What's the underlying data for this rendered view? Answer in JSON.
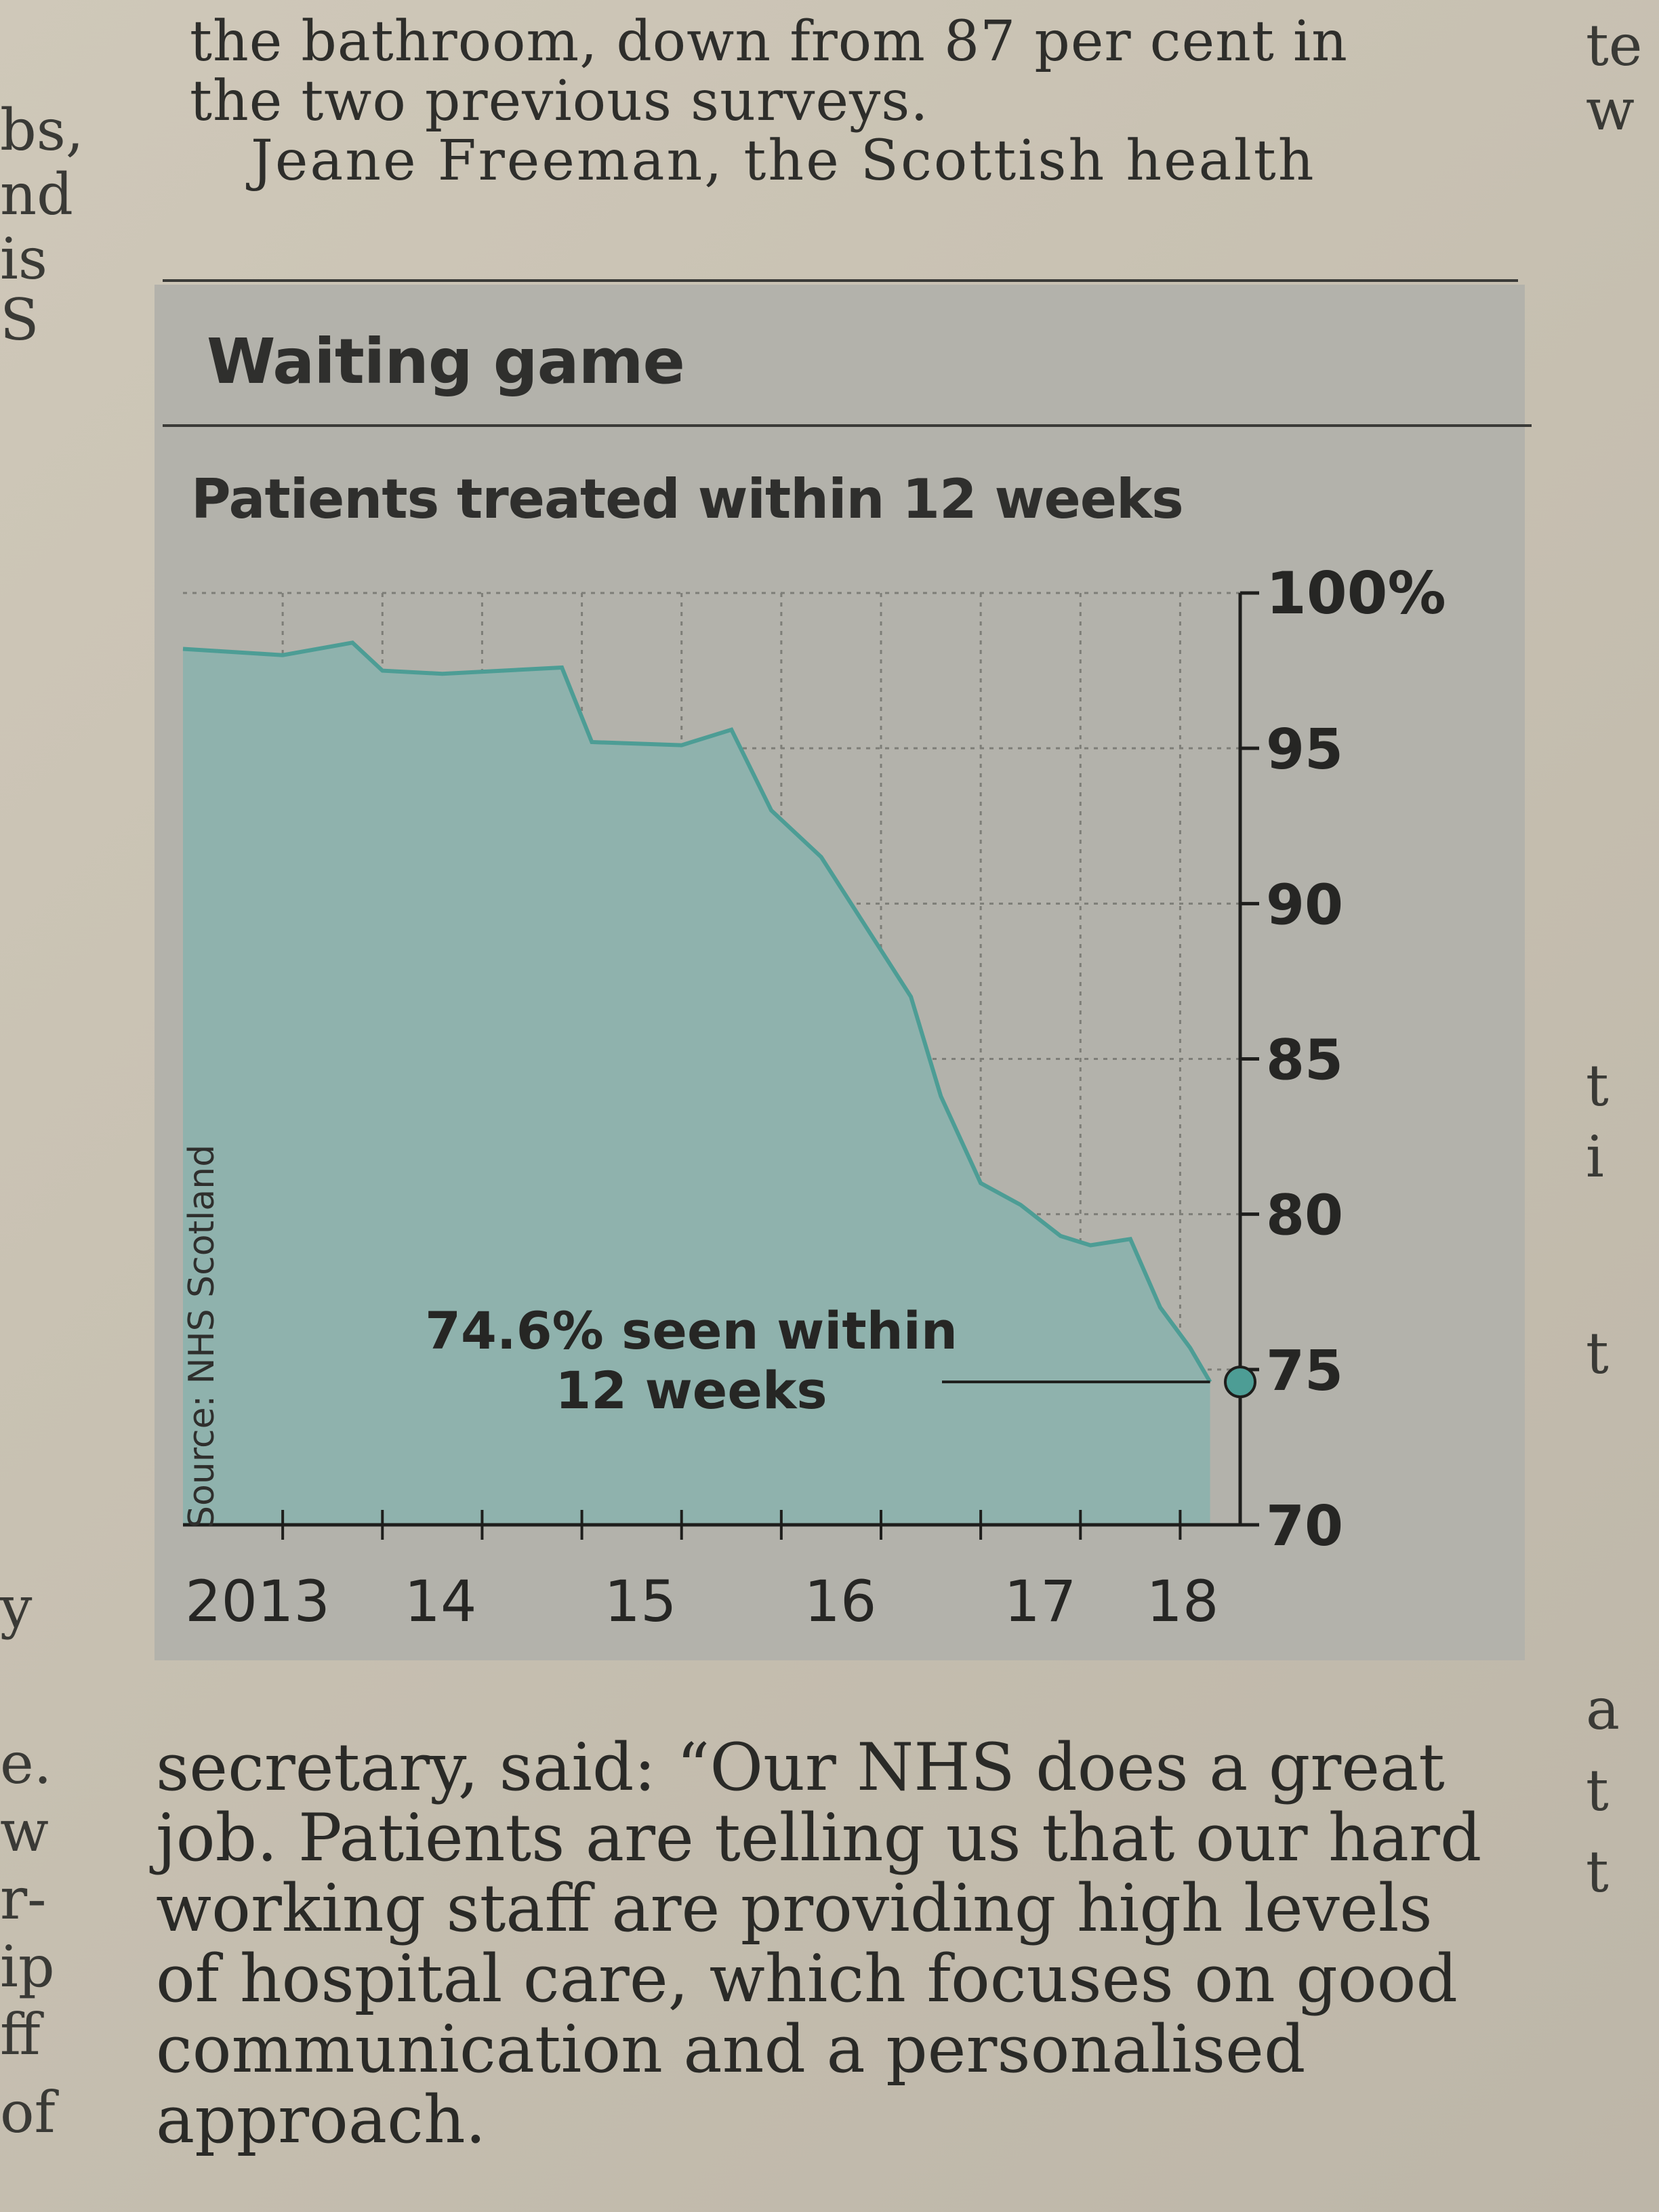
{
  "article": {
    "top_lines": [
      "the bathroom, down from 87 per cent in",
      "the two previous surveys.",
      "Jeane Freeman, the Scottish health"
    ],
    "bottom_lines": [
      "secretary, said: “Our NHS does a great",
      "job. Patients are telling us that our hard",
      "working staff are providing high levels",
      "of hospital care, which focuses on good",
      "communication and a personalised",
      "approach."
    ]
  },
  "margin_left": [
    "bs,",
    "nd",
    "is",
    "S",
    "y",
    "e.",
    "w",
    "r-",
    "ip",
    "ff",
    "of"
  ],
  "margin_right": [
    "te",
    "w",
    "t",
    "i",
    "t",
    "a",
    "t",
    "t"
  ],
  "graphic": {
    "title": "Waiting game",
    "source": "Source: NHS Scotland",
    "annotation_line1": "74.6% seen within",
    "annotation_line2": "12 weeks"
  },
  "colors": {
    "area_fill": "#8fb2ad",
    "line": "#4d9d95",
    "panel": "#b3b2ab",
    "text": "#262624"
  },
  "chart_data": {
    "type": "area",
    "title": "Patients treated within 12 weeks",
    "xlabel": "",
    "ylabel": "",
    "x_ticks": [
      "2013",
      "14",
      "15",
      "16",
      "17",
      "18"
    ],
    "y_ticks": [
      "100%",
      "95",
      "90",
      "85",
      "80",
      "75",
      "70"
    ],
    "ylim": [
      70,
      100
    ],
    "xlim": [
      2013.0,
      2018.25
    ],
    "grid": true,
    "y_axis_side": "right",
    "series": [
      {
        "x": [
          2013.0,
          2013.5,
          2013.85,
          2014.0,
          2014.3,
          2014.9,
          2015.05,
          2015.5,
          2015.75,
          2015.95,
          2016.2,
          2016.45,
          2016.65,
          2016.8,
          2017.0,
          2017.2,
          2017.4,
          2017.55,
          2017.75,
          2017.9,
          2018.05,
          2018.15
        ],
        "y": [
          98.2,
          98.0,
          98.4,
          97.5,
          97.4,
          97.6,
          95.2,
          95.1,
          95.6,
          93.0,
          91.5,
          89.0,
          87.0,
          83.8,
          81.0,
          80.3,
          79.3,
          79.0,
          79.2,
          77.0,
          75.7,
          74.6
        ]
      }
    ],
    "annotations": [
      {
        "text": "74.6% seen within 12 weeks",
        "x": 2018.15,
        "y": 74.6
      }
    ]
  }
}
